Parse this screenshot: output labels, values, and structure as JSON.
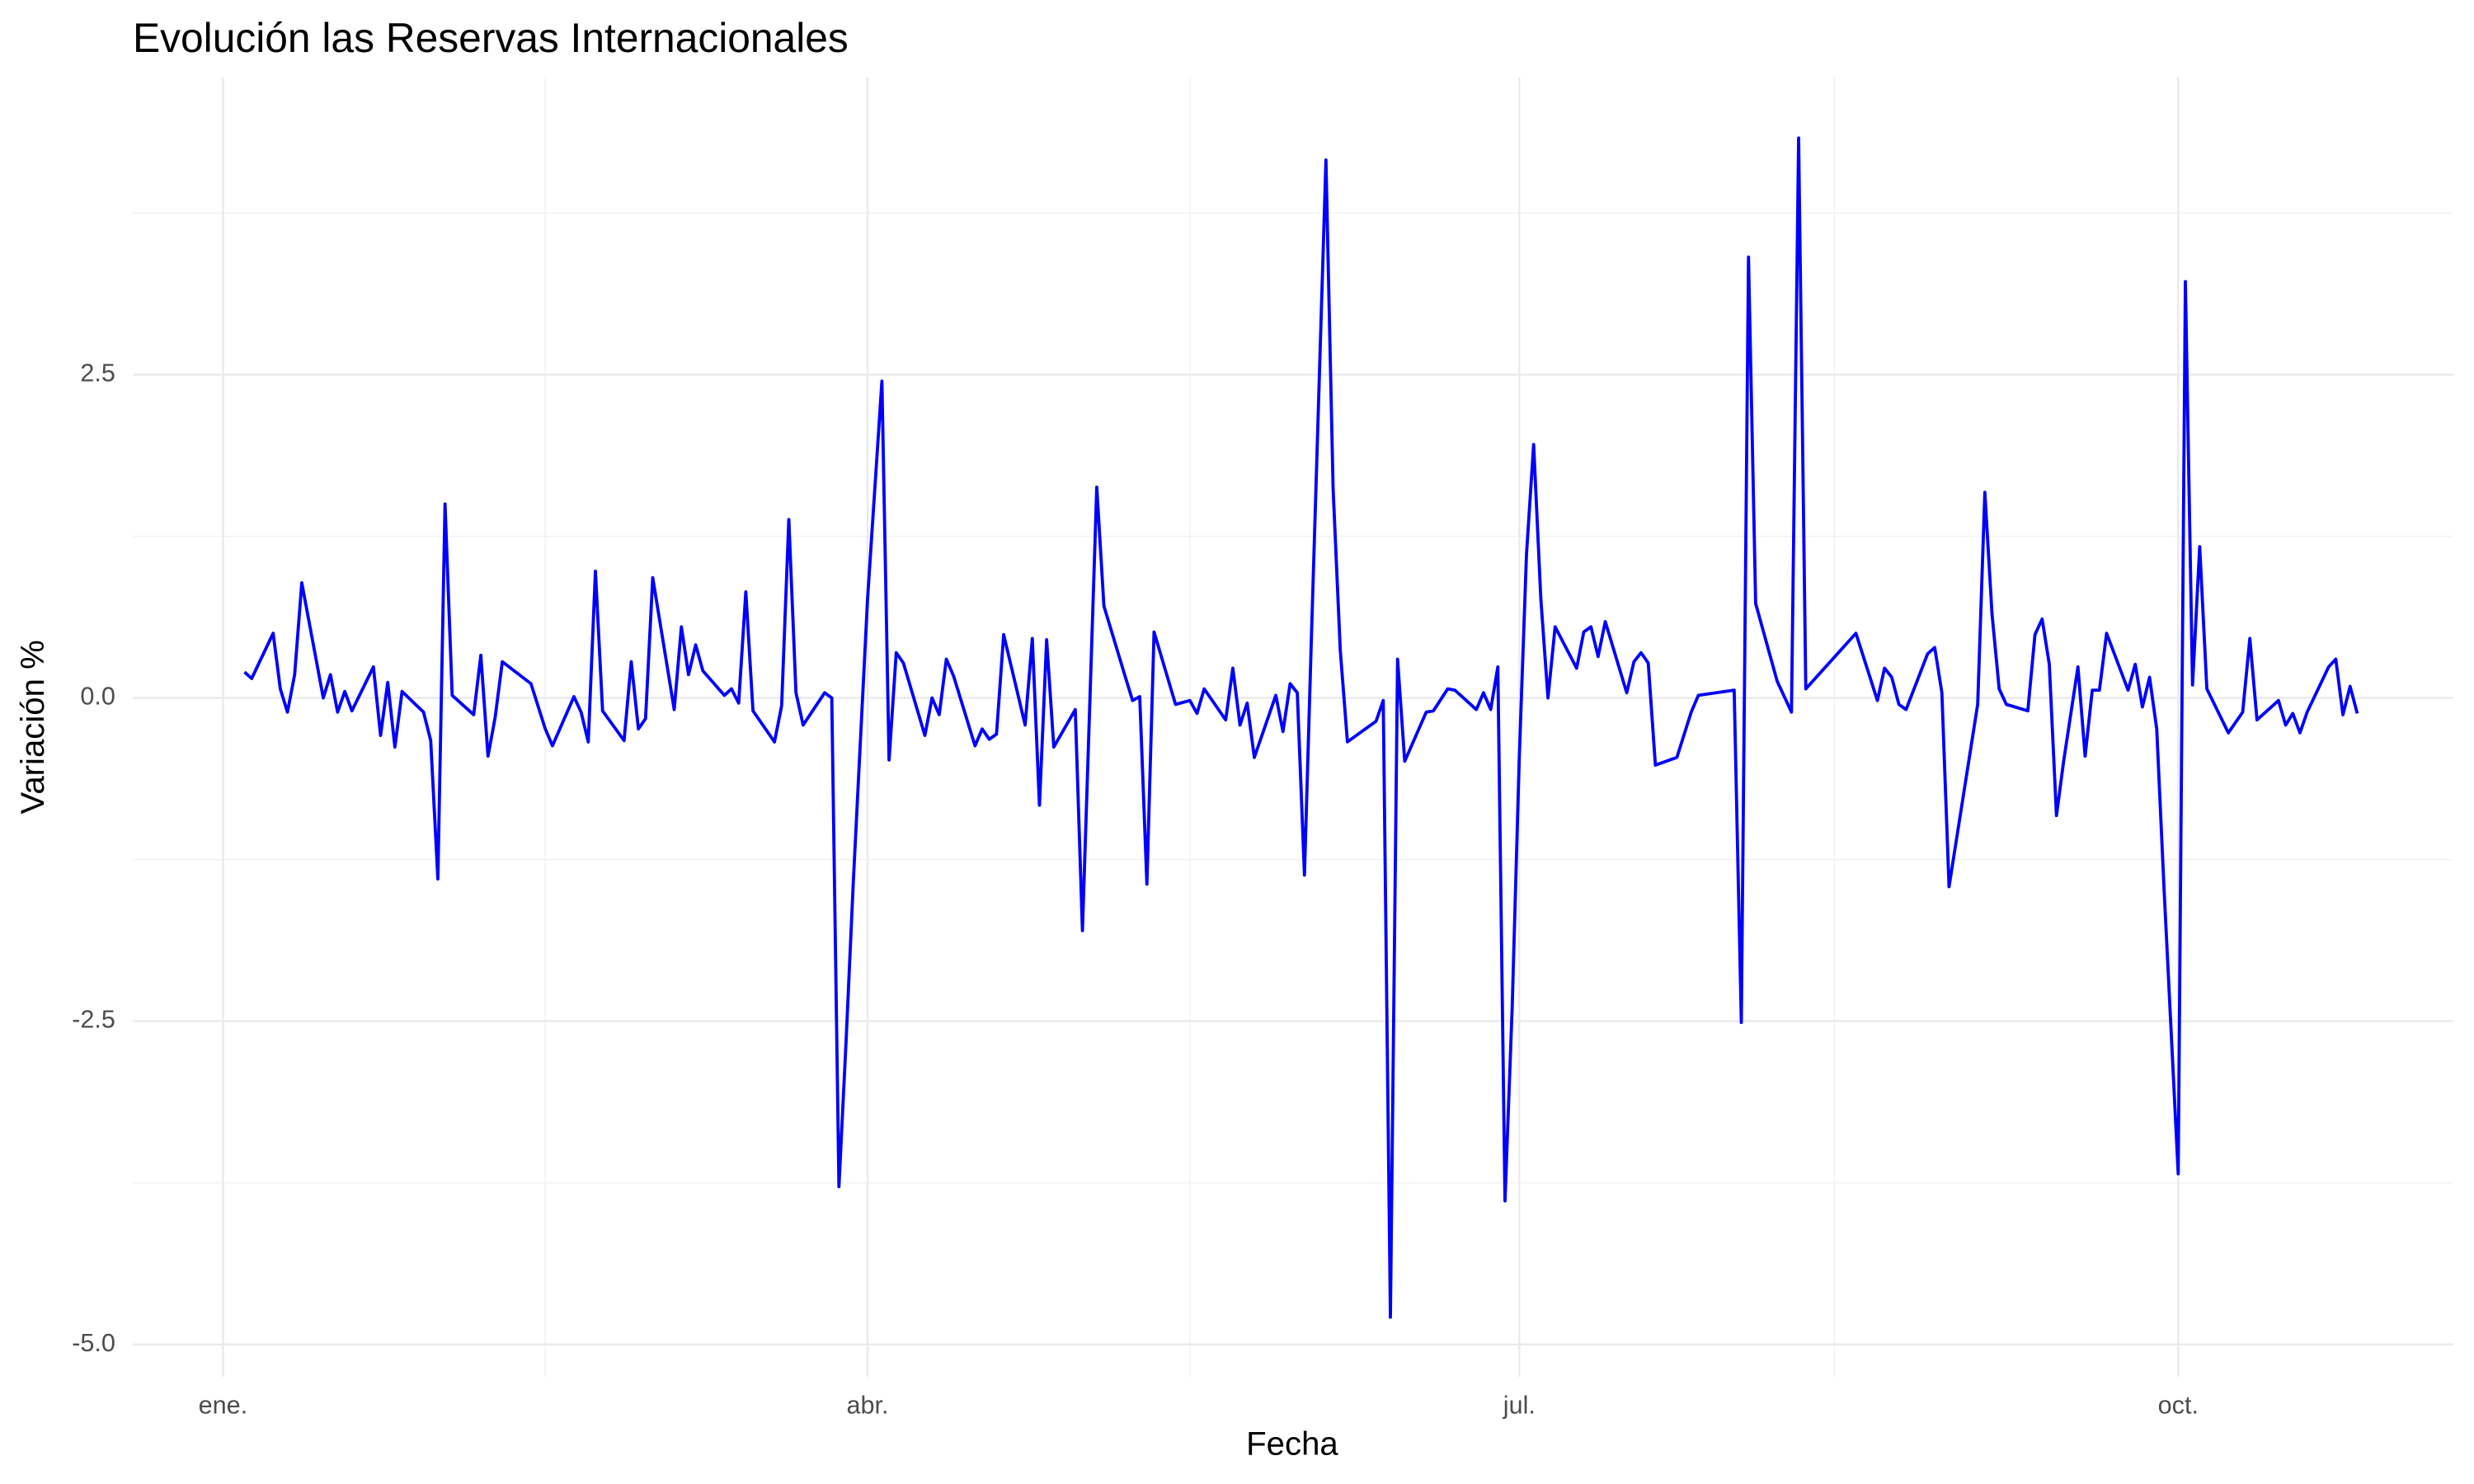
{
  "chart_data": {
    "type": "line",
    "title": "Evolución las Reservas Internacionales",
    "x_label": "Fecha",
    "y_label": "Variación %",
    "color": "#0000ff",
    "grid": true,
    "xlim": [
      -12.6,
      311.4
    ],
    "xticks": [
      {
        "value": 0,
        "label": "ene."
      },
      {
        "value": 90,
        "label": "abr."
      },
      {
        "value": 181,
        "label": "jul."
      },
      {
        "value": 273,
        "label": "oct."
      }
    ],
    "ylim": [
      -5.25,
      4.8
    ],
    "yticks": [
      {
        "value": -5,
        "label": "-5.0"
      },
      -2.5,
      {
        "value": 0,
        "label": "0.0"
      },
      2.5
    ],
    "x": [
      3,
      4,
      7,
      8,
      9,
      10,
      11,
      14,
      15,
      16,
      17,
      18,
      21,
      22,
      23,
      24,
      25,
      28,
      29,
      30,
      31,
      32,
      35,
      36,
      37,
      38,
      39,
      43,
      45,
      46,
      49,
      50,
      51,
      52,
      53,
      56,
      57,
      58,
      59,
      60,
      63,
      64,
      65,
      66,
      67,
      70,
      71,
      72,
      73,
      74,
      77,
      78,
      79,
      80,
      81,
      84,
      85,
      86,
      87,
      88,
      90,
      92,
      93,
      94,
      95,
      98,
      99,
      100,
      101,
      102,
      105,
      106,
      107,
      108,
      109,
      112,
      113,
      114,
      115,
      116,
      119,
      120,
      121,
      122,
      123,
      126,
      127,
      128,
      129,
      130,
      133,
      135,
      136,
      137,
      140,
      141,
      142,
      143,
      144,
      147,
      148,
      149,
      150,
      151,
      152,
      154,
      155,
      156,
      157,
      161,
      162,
      163,
      164,
      165,
      168,
      169,
      171,
      172,
      175,
      176,
      177,
      178,
      179,
      180,
      181,
      182,
      183,
      184,
      185,
      186,
      189,
      190,
      191,
      192,
      193,
      196,
      197,
      198,
      199,
      200,
      203,
      205,
      206,
      211,
      212,
      213,
      214,
      217,
      219,
      220,
      221,
      228,
      231,
      232,
      233,
      234,
      235,
      238,
      239,
      240,
      241,
      245,
      246,
      247,
      248,
      249,
      252,
      253,
      254,
      255,
      256,
      257,
      259,
      260,
      261,
      262,
      263,
      266,
      267,
      268,
      269,
      270,
      271,
      273,
      274,
      275,
      276,
      277,
      280,
      282,
      283,
      284,
      287,
      288,
      289,
      290,
      291,
      294,
      295,
      296,
      297,
      298
    ],
    "values": [
      0.2,
      0.15,
      0.5,
      0.07,
      -0.11,
      0.18,
      0.89,
      0,
      0.18,
      -0.11,
      0.05,
      -0.1,
      0.24,
      -0.29,
      0.12,
      -0.38,
      0.05,
      -0.11,
      -0.33,
      -1.4,
      1.5,
      0.02,
      -0.13,
      0.33,
      -0.45,
      -0.15,
      0.28,
      0.11,
      -0.24,
      -0.37,
      0.01,
      -0.11,
      -0.34,
      0.98,
      -0.1,
      -0.33,
      0.28,
      -0.24,
      -0.16,
      0.93,
      -0.09,
      0.55,
      0.18,
      0.41,
      0.21,
      0.02,
      0.07,
      -0.04,
      0.82,
      -0.1,
      -0.34,
      -0.06,
      1.38,
      0.04,
      -0.21,
      0.04,
      0,
      -3.78,
      -2.65,
      -1.43,
      0.77,
      2.45,
      -0.48,
      0.35,
      0.27,
      -0.29,
      0,
      -0.13,
      0.3,
      0.17,
      -0.37,
      -0.24,
      -0.32,
      -0.28,
      0.49,
      -0.21,
      0.46,
      -0.83,
      0.45,
      -0.38,
      -0.09,
      -1.8,
      -0.09,
      1.63,
      0.71,
      0.16,
      -0.02,
      0.01,
      -1.44,
      0.51,
      -0.05,
      -0.02,
      -0.12,
      0.07,
      -0.17,
      0.23,
      -0.21,
      -0.04,
      -0.46,
      0.02,
      -0.26,
      0.11,
      0.04,
      -1.37,
      0.52,
      4.16,
      1.62,
      0.37,
      -0.34,
      -0.18,
      -0.02,
      -4.79,
      0.3,
      -0.49,
      -0.11,
      -0.1,
      0.07,
      0.06,
      -0.09,
      0.04,
      -0.09,
      0.24,
      -3.89,
      -2.4,
      -0.45,
      1.11,
      1.96,
      0.77,
      0,
      0.55,
      0.23,
      0.51,
      0.55,
      0.32,
      0.59,
      0.04,
      0.28,
      0.35,
      0.27,
      -0.52,
      -0.46,
      -0.11,
      0.02,
      0.06,
      -2.51,
      3.41,
      0.73,
      0.13,
      -0.11,
      4.33,
      0.07,
      0.5,
      -0.02,
      0.23,
      0.16,
      -0.05,
      -0.09,
      0.34,
      0.39,
      0.04,
      -1.46,
      -0.05,
      1.59,
      0.65,
      0.07,
      -0.05,
      -0.1,
      0.49,
      0.61,
      0.26,
      -0.91,
      -0.49,
      0.24,
      -0.45,
      0.06,
      0.06,
      0.5,
      0.06,
      0.26,
      -0.07,
      0.16,
      -0.24,
      -1.45,
      -3.68,
      3.22,
      0.1,
      1.17,
      0.07,
      -0.27,
      -0.11,
      0.46,
      -0.17,
      -0.02,
      -0.21,
      -0.12,
      -0.27,
      -0.11,
      0.24,
      0.3,
      -0.13,
      0.09,
      -0.12
    ]
  }
}
